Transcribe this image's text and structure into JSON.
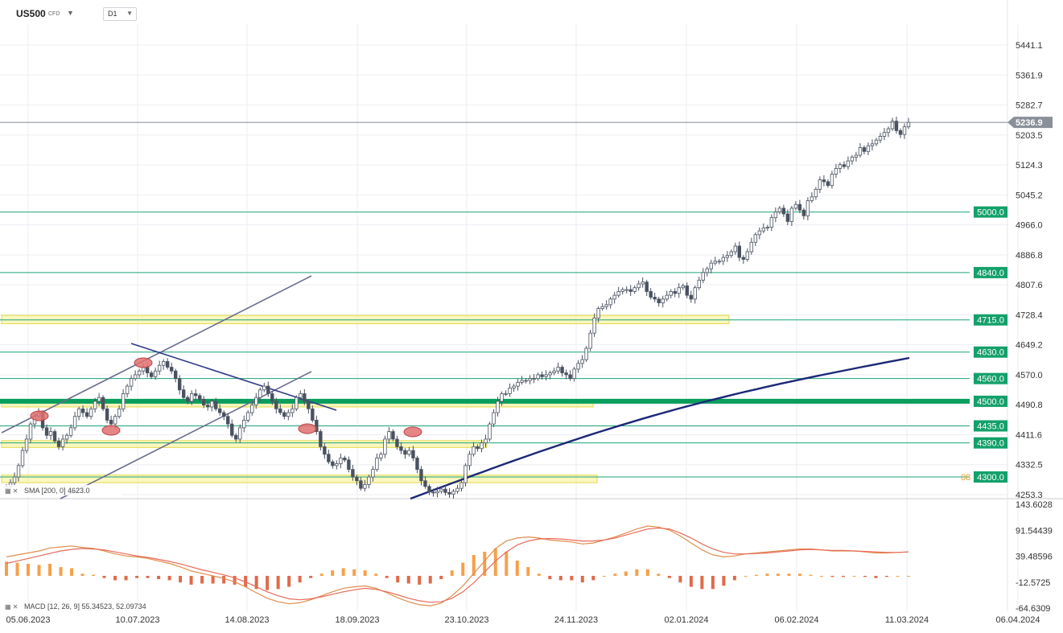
{
  "toolbar": {
    "symbol": "US500",
    "symbol_type": "CFD",
    "timeframe": "D1"
  },
  "chart_data": [
    {
      "type": "candlestick",
      "title": "US500 CFD D1",
      "ylim": [
        4253.3,
        5480
      ],
      "y_ticks": [
        "5441.1",
        "5361.9",
        "5282.7",
        "5203.5",
        "5124.3",
        "5045.2",
        "4966.0",
        "4886.8",
        "4807.6",
        "4728.4",
        "4649.2",
        "4570.0",
        "4490.8",
        "4411.6",
        "4332.5",
        "4253.3"
      ],
      "x_ticks": [
        "05.06.2023",
        "10.07.2023",
        "14.08.2023",
        "18.09.2023",
        "23.10.2023",
        "24.11.2023",
        "02.01.2024",
        "06.02.2024",
        "11.03.2024",
        "06.04.2024"
      ],
      "last_price": "5236.9",
      "close_series_approx": [
        4275,
        4285,
        4300,
        4330,
        4370,
        4400,
        4440,
        4460,
        4470,
        4430,
        4410,
        4420,
        4395,
        4380,
        4400,
        4410,
        4430,
        4460,
        4480,
        4470,
        4460,
        4480,
        4500,
        4510,
        4480,
        4450,
        4440,
        4460,
        4480,
        4520,
        4540,
        4560,
        4570,
        4580,
        4590,
        4575,
        4565,
        4580,
        4595,
        4605,
        4590,
        4580,
        4560,
        4530,
        4510,
        4500,
        4520,
        4515,
        4505,
        4490,
        4485,
        4500,
        4480,
        4470,
        4460,
        4440,
        4410,
        4400,
        4430,
        4450,
        4470,
        4490,
        4510,
        4530,
        4540,
        4520,
        4500,
        4480,
        4470,
        4460,
        4470,
        4480,
        4510,
        4520,
        4500,
        4480,
        4450,
        4420,
        4380,
        4360,
        4340,
        4330,
        4335,
        4350,
        4345,
        4320,
        4300,
        4290,
        4270,
        4280,
        4300,
        4320,
        4350,
        4360,
        4400,
        4420,
        4400,
        4380,
        4370,
        4360,
        4370,
        4350,
        4320,
        4290,
        4275,
        4260,
        4258,
        4262,
        4268,
        4259,
        4255,
        4262,
        4270,
        4285,
        4330,
        4360,
        4380,
        4375,
        4390,
        4400,
        4440,
        4470,
        4500,
        4520,
        4520,
        4535,
        4540,
        4550,
        4555,
        4555,
        4560,
        4560,
        4570,
        4565,
        4570,
        4575,
        4580,
        4590,
        4575,
        4570,
        4560,
        4585,
        4600,
        4610,
        4640,
        4680,
        4720,
        4745,
        4750,
        4755,
        4770,
        4780,
        4790,
        4795,
        4795,
        4790,
        4800,
        4810,
        4815,
        4790,
        4775,
        4770,
        4760,
        4770,
        4780,
        4790,
        4785,
        4800,
        4805,
        4780,
        4770,
        4800,
        4820,
        4840,
        4850,
        4865,
        4870,
        4870,
        4880,
        4885,
        4895,
        4910,
        4880,
        4875,
        4895,
        4920,
        4940,
        4950,
        4958,
        4960,
        4985,
        5000,
        5010,
        4995,
        4975,
        5010,
        5020,
        5005,
        4990,
        5030,
        5040,
        5060,
        5085,
        5080,
        5070,
        5100,
        5115,
        5125,
        5120,
        5135,
        5145,
        5150,
        5170,
        5160,
        5175,
        5180,
        5190,
        5200,
        5210,
        5220,
        5240,
        5215,
        5205,
        5225,
        5236.9
      ],
      "horizontal_levels": [
        {
          "value": 5000.0,
          "label": "5000.0",
          "color": "#1aa478",
          "width": 1
        },
        {
          "value": 4840.0,
          "label": "4840.0",
          "color": "#1aa478",
          "width": 1
        },
        {
          "value": 4715.0,
          "label": "4715.0",
          "color": "#1aa478",
          "width": 1
        },
        {
          "value": 4630.0,
          "label": "4630.0",
          "color": "#1aa478",
          "width": 1
        },
        {
          "value": 4560.0,
          "label": "4560.0",
          "color": "#1aa478",
          "width": 1
        },
        {
          "value": 4500.0,
          "label": "4500.0",
          "color": "#0a9e5c",
          "width": 6
        },
        {
          "value": 4435.0,
          "label": "4435.0",
          "color": "#1aa478",
          "width": 1
        },
        {
          "value": 4390.0,
          "label": "4390.0",
          "color": "#1aa478",
          "width": 1
        },
        {
          "value": 4300.0,
          "label": "4300.0",
          "color": "#1aa478",
          "width": 1
        }
      ],
      "sma": {
        "label": "SMA [200, 0]",
        "value": "4623.0",
        "color": "#1b2878"
      },
      "zones": [
        {
          "from": 4705,
          "to": 4727,
          "color": "#f5f08a"
        },
        {
          "from": 4485,
          "to": 4500,
          "color": "#f5f08a"
        },
        {
          "from": 4378,
          "to": 4396,
          "color": "#f5f08a"
        },
        {
          "from": 4285,
          "to": 4305,
          "color": "#f5f08a"
        }
      ],
      "grid": true,
      "colors": {
        "candle": "#4a5260",
        "level": "#1aa478",
        "zone": "#f5f08a",
        "sma": "#1b2878",
        "trendline": "#6a6e8e",
        "marker": "#e07070"
      }
    },
    {
      "type": "macd",
      "label": "MACD [12, 26, 9]",
      "values_text": [
        "55.34523",
        "52.09734"
      ],
      "ylim": [
        -64.6309,
        143.6028
      ],
      "y_ticks": [
        "143.6028",
        "91.54439",
        "39.48596",
        "-12.5725",
        "-64.6309"
      ],
      "macd_series_approx": [
        38,
        42,
        46,
        50,
        56,
        58,
        60,
        57,
        55,
        50,
        44,
        40,
        38,
        35,
        30,
        25,
        18,
        10,
        5,
        0,
        -5,
        -12,
        -22,
        -34,
        -45,
        -52,
        -56,
        -54,
        -48,
        -40,
        -32,
        -25,
        -22,
        -20,
        -25,
        -34,
        -44,
        -52,
        -58,
        -60,
        -55,
        -40,
        -20,
        5,
        30,
        55,
        70,
        76,
        78,
        76,
        72,
        70,
        68,
        64,
        66,
        72,
        78,
        86,
        94,
        100,
        98,
        92,
        80,
        66,
        52,
        42,
        38,
        40,
        44,
        46,
        48,
        50,
        52,
        54,
        54,
        52,
        50,
        50,
        50,
        48,
        46,
        46,
        47,
        48
      ],
      "signal_series_approx": [
        25,
        30,
        35,
        40,
        45,
        50,
        53,
        55,
        54,
        52,
        48,
        44,
        40,
        37,
        33,
        29,
        24,
        18,
        12,
        7,
        2,
        -4,
        -12,
        -22,
        -32,
        -40,
        -46,
        -48,
        -46,
        -42,
        -37,
        -32,
        -28,
        -25,
        -27,
        -32,
        -38,
        -45,
        -50,
        -53,
        -52,
        -45,
        -32,
        -14,
        8,
        30,
        48,
        62,
        70,
        74,
        75,
        74,
        72,
        70,
        70,
        72,
        76,
        82,
        88,
        94,
        96,
        94,
        86,
        76,
        64,
        54,
        47,
        44,
        44,
        45,
        46,
        48,
        50,
        52,
        53,
        52,
        51,
        51,
        50,
        49,
        48,
        47,
        47,
        48
      ],
      "colors": {
        "macd": "#e08d4a",
        "signal": "#e86a5a",
        "hist_pos": "#f5a04a",
        "hist_neg": "#e06a4a"
      }
    }
  ]
}
